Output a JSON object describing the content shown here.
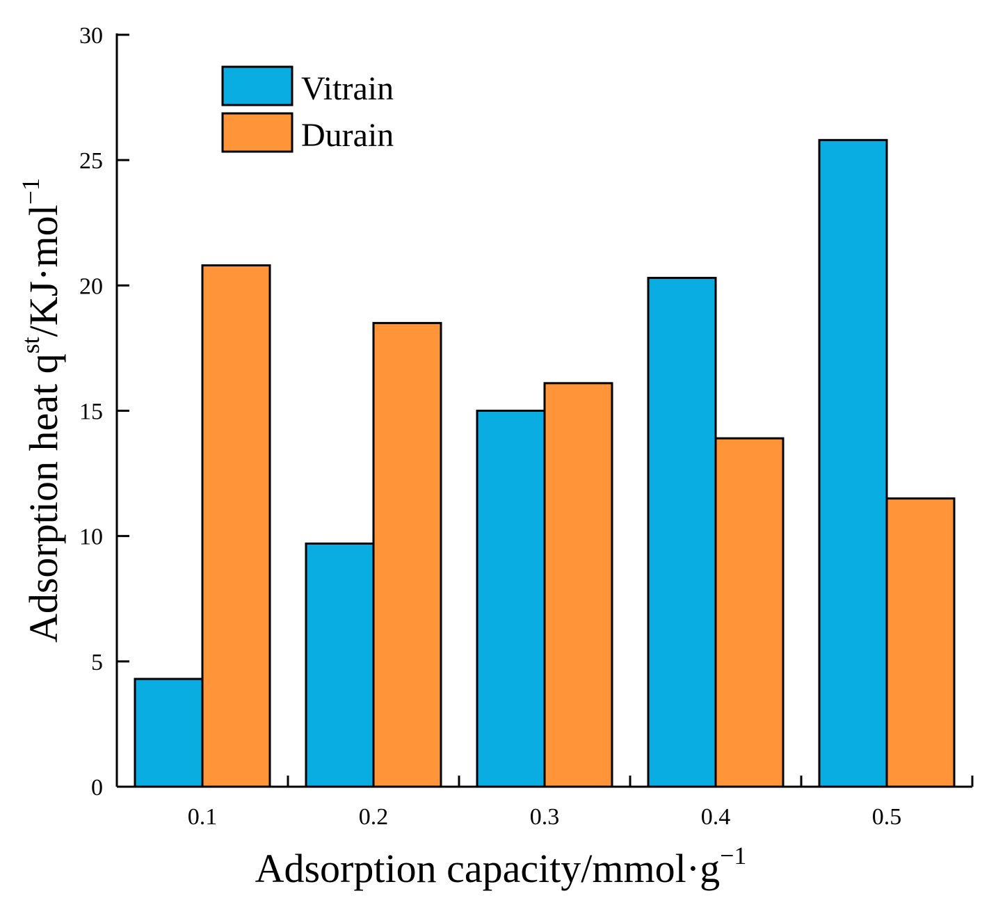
{
  "chart_data": {
    "type": "bar",
    "title": "",
    "xlabel": "Adsorption capacity/mmol·g",
    "xlabel_sup": "−1",
    "ylabel_main": "Adsorption heat q",
    "ylabel_sup1": "st",
    "ylabel_mid": "/KJ·mol",
    "ylabel_sup2": "−1",
    "categories": [
      "0.1",
      "0.2",
      "0.3",
      "0.4",
      "0.5"
    ],
    "ylim": [
      0,
      30
    ],
    "yticks": [
      0,
      5,
      10,
      15,
      20,
      25,
      30
    ],
    "yticklabels": [
      "0",
      "5",
      "10",
      "15",
      "20",
      "25",
      "30"
    ],
    "grid": false,
    "legend_position": "top-left",
    "series": [
      {
        "name": "Vitrain",
        "color": "#09ADE2",
        "values": [
          4.3,
          9.7,
          15.0,
          20.3,
          25.8
        ]
      },
      {
        "name": "Durain",
        "color": "#FF9438",
        "values": [
          20.8,
          18.5,
          16.1,
          13.9,
          11.5
        ]
      }
    ]
  }
}
